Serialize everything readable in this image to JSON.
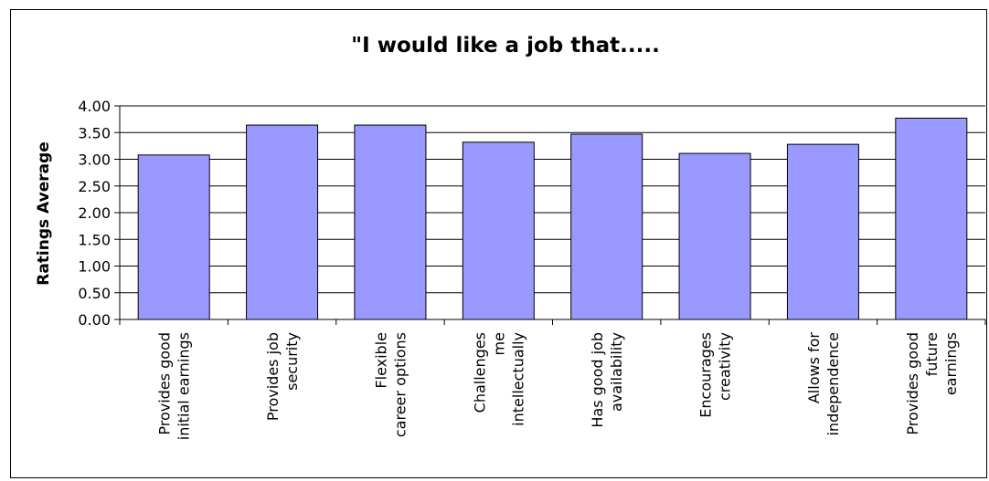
{
  "chart_data": {
    "type": "bar",
    "title": "\"I would like a job that.....",
    "xlabel": "",
    "ylabel": "Ratings Average",
    "ylim": [
      0,
      4
    ],
    "yticks": [
      "0.00",
      "0.50",
      "1.00",
      "1.50",
      "2.00",
      "2.50",
      "3.00",
      "3.50",
      "4.00"
    ],
    "grid": true,
    "bar_color": "#9999ff",
    "categories": [
      [
        "Provides good",
        "initial earnings"
      ],
      [
        "Provides job",
        "security"
      ],
      [
        "Flexible",
        "career options"
      ],
      [
        "Challenges",
        "me",
        "intellectually"
      ],
      [
        "Has good job",
        "availability"
      ],
      [
        "Encourages",
        "creativity"
      ],
      [
        "Allows for",
        "independence"
      ],
      [
        "Provides good",
        "future",
        "earnings"
      ]
    ],
    "values": [
      3.08,
      3.64,
      3.64,
      3.32,
      3.47,
      3.11,
      3.28,
      3.77
    ]
  }
}
